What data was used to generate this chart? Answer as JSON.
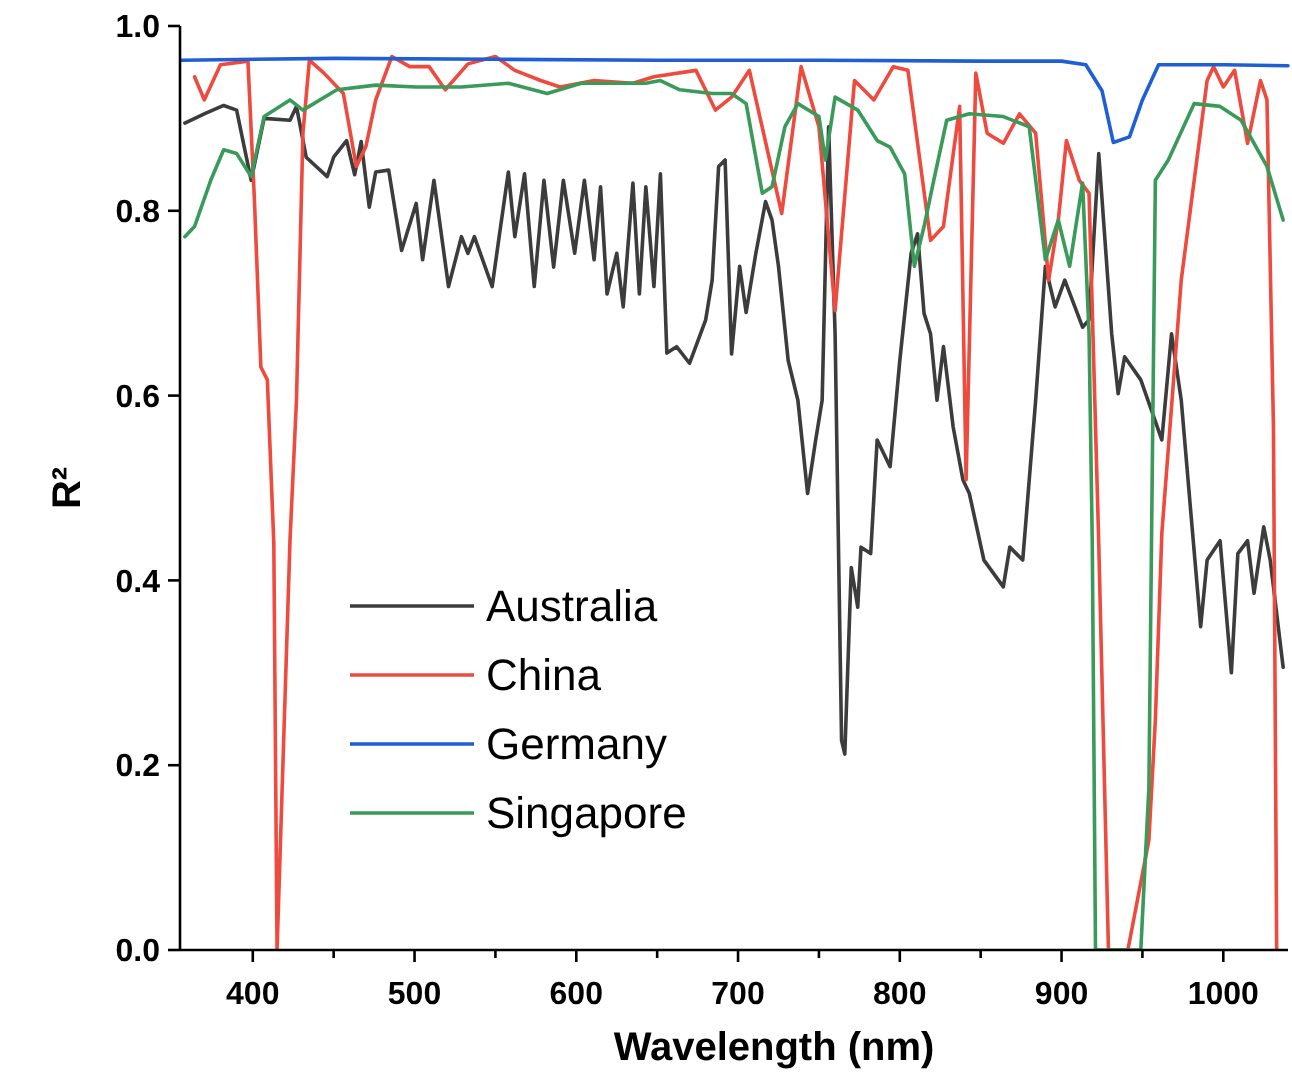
{
  "chart_data": {
    "type": "line",
    "xlabel": "Wavelength (nm)",
    "ylabel": "R²",
    "xlim": [
      355,
      1040
    ],
    "ylim": [
      0,
      1
    ],
    "xticks": [
      400,
      {
        "value": 450,
        "label": null
      },
      500,
      {
        "value": 550,
        "label": null
      },
      600,
      {
        "value": 650,
        "label": null
      },
      700,
      {
        "value": 750,
        "label": null
      },
      800,
      {
        "value": 850,
        "label": null
      },
      900,
      {
        "value": 950,
        "label": null
      },
      1000
    ],
    "yticks": [
      {
        "value": 0,
        "label": "0.0"
      },
      {
        "value": 0.2,
        "label": "0.2"
      },
      {
        "value": 0.4,
        "label": "0.4"
      },
      {
        "value": 0.6,
        "label": "0.6"
      },
      {
        "value": 0.8,
        "label": "0.8"
      },
      {
        "value": 1,
        "label": "1.0"
      }
    ],
    "grid": false,
    "legend": "bottom left",
    "marker": "none",
    "line_style": "solid",
    "series": [
      {
        "name": "Australia",
        "color": "#3c3c3c",
        "x": [
          358,
          370,
          382,
          390,
          399,
          407,
          423,
          427,
          433,
          446,
          450,
          458,
          463,
          467,
          472,
          476,
          484,
          492,
          501,
          505,
          512,
          521,
          529,
          533,
          537,
          548,
          552,
          558,
          562,
          568,
          574,
          580,
          586,
          592,
          599,
          605,
          611,
          615,
          619,
          625,
          629,
          635,
          639,
          643,
          648,
          652,
          656,
          662,
          670,
          680,
          684,
          688,
          692,
          696,
          701,
          705,
          711,
          717,
          721,
          725,
          731,
          737,
          743,
          748,
          752,
          756,
          760,
          764,
          766,
          770,
          774,
          776,
          782,
          786,
          794,
          800,
          807,
          811,
          815,
          819,
          823,
          827,
          833,
          839,
          843,
          852,
          864,
          868,
          876,
          878,
          884,
          890,
          896,
          902,
          913,
          917,
          923,
          931,
          935,
          939,
          949,
          962,
          968,
          974,
          980,
          986,
          990,
          998,
          1005,
          1009,
          1015,
          1019,
          1025,
          1029,
          1037
        ],
        "values": [
          0.895,
          0.905,
          0.914,
          0.909,
          0.833,
          0.9,
          0.898,
          0.913,
          0.858,
          0.837,
          0.858,
          0.876,
          0.839,
          0.875,
          0.804,
          0.842,
          0.844,
          0.757,
          0.808,
          0.747,
          0.833,
          0.718,
          0.772,
          0.754,
          0.772,
          0.718,
          0.768,
          0.842,
          0.772,
          0.84,
          0.718,
          0.833,
          0.739,
          0.833,
          0.754,
          0.833,
          0.747,
          0.826,
          0.71,
          0.754,
          0.696,
          0.83,
          0.71,
          0.826,
          0.718,
          0.84,
          0.646,
          0.653,
          0.635,
          0.682,
          0.725,
          0.848,
          0.855,
          0.645,
          0.74,
          0.69,
          0.754,
          0.81,
          0.79,
          0.74,
          0.638,
          0.595,
          0.494,
          0.552,
          0.595,
          0.891,
          0.667,
          0.227,
          0.212,
          0.414,
          0.371,
          0.436,
          0.429,
          0.552,
          0.523,
          0.638,
          0.754,
          0.775,
          0.689,
          0.667,
          0.595,
          0.653,
          0.566,
          0.509,
          0.494,
          0.422,
          0.393,
          0.436,
          0.422,
          0.465,
          0.595,
          0.74,
          0.696,
          0.725,
          0.674,
          0.682,
          0.862,
          0.667,
          0.602,
          0.642,
          0.617,
          0.552,
          0.667,
          0.595,
          0.472,
          0.35,
          0.422,
          0.443,
          0.3,
          0.429,
          0.443,
          0.386,
          0.458,
          0.422,
          0.306
        ]
      },
      {
        "name": "China",
        "color": "#ee4b3e",
        "x": [
          364,
          370,
          380,
          397,
          401,
          405,
          409,
          413,
          415,
          423,
          427,
          431,
          435,
          444,
          456,
          464,
          470,
          476,
          486,
          497,
          509,
          519,
          533,
          550,
          562,
          578,
          590,
          611,
          635,
          648,
          674,
          686,
          696,
          707,
          727,
          739,
          750,
          760,
          772,
          784,
          796,
          805,
          819,
          827,
          837,
          841,
          847,
          854,
          864,
          874,
          884,
          892,
          898,
          903,
          911,
          917,
          923,
          929,
          941,
          954,
          958,
          962,
          974,
          990,
          994,
          1000,
          1007,
          1015,
          1023,
          1027,
          1031,
          1033
        ],
        "values": [
          0.945,
          0.92,
          0.958,
          0.962,
          0.812,
          0.631,
          0.617,
          0.44,
          0,
          0.443,
          0.595,
          0.884,
          0.963,
          0.949,
          0.927,
          0.848,
          0.87,
          0.92,
          0.967,
          0.956,
          0.956,
          0.931,
          0.959,
          0.967,
          0.952,
          0.941,
          0.934,
          0.941,
          0.938,
          0.945,
          0.952,
          0.909,
          0.923,
          0.952,
          0.797,
          0.956,
          0.891,
          0.692,
          0.941,
          0.92,
          0.956,
          0.952,
          0.768,
          0.783,
          0.913,
          0.509,
          0.949,
          0.884,
          0.873,
          0.905,
          0.884,
          0.725,
          0.79,
          0.876,
          0.833,
          0.819,
          0.44,
          0,
          0,
          0.119,
          0.249,
          0.451,
          0.725,
          0.941,
          0.956,
          0.934,
          0.952,
          0.873,
          0.941,
          0.92,
          0.566,
          0
        ]
      },
      {
        "name": "Germany",
        "color": "#1f5fd6",
        "x": [
          356,
          450,
          550,
          650,
          750,
          850,
          900,
          915,
          925,
          932,
          942,
          950,
          960,
          1000,
          1040
        ],
        "values": [
          0.963,
          0.965,
          0.964,
          0.963,
          0.963,
          0.962,
          0.962,
          0.958,
          0.93,
          0.874,
          0.88,
          0.92,
          0.958,
          0.958,
          0.957
        ]
      },
      {
        "name": "Singapore",
        "color": "#3a9a5a",
        "x": [
          358,
          364,
          374,
          382,
          390,
          399,
          407,
          423,
          431,
          452,
          476,
          501,
          529,
          558,
          582,
          603,
          627,
          643,
          652,
          664,
          684,
          696,
          705,
          715,
          721,
          729,
          737,
          750,
          754,
          760,
          774,
          786,
          794,
          803,
          809,
          815,
          821,
          829,
          843,
          864,
          880,
          890,
          898,
          905,
          913,
          917,
          919,
          921,
          949,
          954,
          958,
          966,
          982,
          998,
          1011,
          1027,
          1037
        ],
        "values": [
          0.772,
          0.783,
          0.833,
          0.866,
          0.862,
          0.837,
          0.902,
          0.92,
          0.909,
          0.931,
          0.936,
          0.934,
          0.934,
          0.938,
          0.927,
          0.938,
          0.938,
          0.938,
          0.941,
          0.931,
          0.927,
          0.927,
          0.916,
          0.819,
          0.826,
          0.891,
          0.916,
          0.902,
          0.855,
          0.923,
          0.909,
          0.876,
          0.869,
          0.84,
          0.74,
          0.783,
          0.833,
          0.898,
          0.905,
          0.902,
          0.891,
          0.747,
          0.79,
          0.74,
          0.83,
          0.667,
          0.44,
          0,
          0,
          0.176,
          0.833,
          0.855,
          0.916,
          0.913,
          0.898,
          0.848,
          0.79
        ]
      }
    ]
  }
}
